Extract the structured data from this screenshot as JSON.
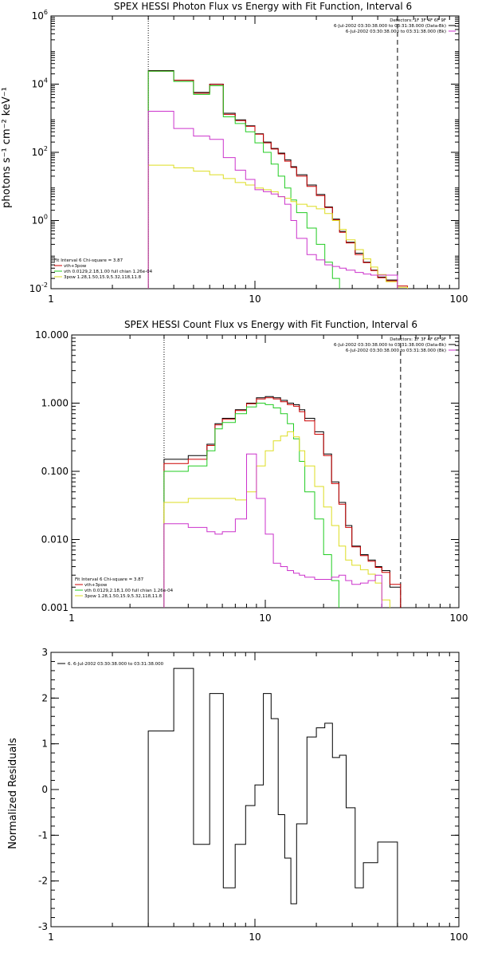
{
  "chart_data": [
    {
      "type": "line",
      "title": "SPEX HESSI Photon Flux vs Energy with Fit Function, Interval 6",
      "xlabel": "",
      "ylabel": "photons s⁻¹ cm⁻² keV⁻¹",
      "x_scale": "log",
      "y_scale": "log",
      "xlim": [
        1,
        100
      ],
      "ylim": [
        0.01,
        1000000
      ],
      "x_tick_labels": [
        "1",
        "10",
        "100"
      ],
      "y_ticks": [
        {
          "value": 1000000,
          "base": "10",
          "exp": "6"
        },
        {
          "value": 10000,
          "base": "10",
          "exp": "4"
        },
        {
          "value": 100,
          "base": "10",
          "exp": "2"
        },
        {
          "value": 1,
          "base": "10",
          "exp": "0"
        },
        {
          "value": 0.01,
          "base": "10",
          "exp": "-2"
        }
      ],
      "markers": [
        {
          "x": 3.0,
          "style": "dotted",
          "color": "#000000"
        },
        {
          "x": 50.0,
          "style": "dashed",
          "color": "#000000"
        }
      ],
      "legend_top": [
        {
          "text": "Detectors: 1F 3F 4F 6F 9F",
          "color": ""
        },
        {
          "text": "6-Jul-2002 03:30:38.000 to 03:31:38.000 (Data-Bk)",
          "color": "#000000"
        },
        {
          "text": "6-Jul-2002 03:30:38.000 to 03:31:38.000 (Bk)",
          "color": "#cc33cc"
        }
      ],
      "legend_bottom": [
        {
          "text": "Fit Interval  6    Chi-square = 3.87",
          "color": ""
        },
        {
          "text": "vth+3pow",
          "color": "#cc0000"
        },
        {
          "text": "vth  0.0129,2.18,1.00  full chian 1.26e-04",
          "color": "#22cc22"
        },
        {
          "text": "3pow  1.28,1.50,15.9,5.32,118,11.8",
          "color": "#dddd22"
        }
      ],
      "edges": [
        3.0,
        3.5,
        4.0,
        5.0,
        6.0,
        7.0,
        8.0,
        9.0,
        10.0,
        11.0,
        12.0,
        13.0,
        14.0,
        15.0,
        16.0,
        18.0,
        20.0,
        22.0,
        24.0,
        26.0,
        28.0,
        31.0,
        34.0,
        37.0,
        40.0,
        44.0,
        50.0,
        56.0
      ],
      "series": [
        {
          "name": "",
          "color": "#000000",
          "values": [
            25000,
            25000,
            13000,
            5700,
            10000,
            1400,
            900,
            600,
            350,
            200,
            130,
            95,
            60,
            38,
            22,
            11,
            5.8,
            2.5,
            1.1,
            0.48,
            0.23,
            0.11,
            0.06,
            0.035,
            0.022,
            0.018,
            0.01
          ]
        },
        {
          "name": "vth+3pow",
          "color": "#cc0000",
          "values": [
            24000,
            24000,
            13000,
            5400,
            9800,
            1300,
            850,
            580,
            340,
            190,
            125,
            90,
            55,
            36,
            20,
            10,
            5.4,
            2.4,
            1.05,
            0.45,
            0.22,
            0.1,
            0.058,
            0.034,
            0.021,
            0.017,
            0.012
          ]
        },
        {
          "name": "vth",
          "color": "#22cc22",
          "values": [
            24000,
            24000,
            12000,
            5000,
            9000,
            1100,
            700,
            400,
            190,
            100,
            45,
            20,
            9,
            4,
            1.7,
            0.6,
            0.2,
            0.06,
            0.02
          ]
        },
        {
          "name": "3pow",
          "color": "#dddd22",
          "values": [
            42,
            42,
            35,
            28,
            22,
            17,
            13,
            11,
            9,
            8,
            7,
            5,
            4.5,
            3.6,
            3.0,
            2.6,
            2.2,
            1.6,
            1.0,
            0.55,
            0.27,
            0.14,
            0.075,
            0.043,
            0.026,
            0.016,
            0.011
          ]
        },
        {
          "name": "",
          "color": "#cc33cc",
          "values": [
            1600,
            1600,
            500,
            300,
            240,
            70,
            30,
            16,
            8,
            7,
            6,
            5,
            3,
            1,
            0.3,
            0.1,
            0.07,
            0.05,
            0.045,
            0.04,
            0.035,
            0.03,
            0.027,
            0.025,
            0.025,
            0.025
          ]
        }
      ]
    },
    {
      "type": "line",
      "title": "SPEX HESSI Count Flux vs Energy with Fit Function, Interval 6",
      "xlabel": "",
      "ylabel": "",
      "x_scale": "log",
      "y_scale": "log",
      "xlim": [
        1,
        100
      ],
      "ylim": [
        0.001,
        10
      ],
      "x_tick_labels": [
        "1",
        "10",
        "100"
      ],
      "y_ticks": [
        {
          "value": 10,
          "label": "10.000"
        },
        {
          "value": 1,
          "label": "1.000"
        },
        {
          "value": 0.1,
          "label": "0.100"
        },
        {
          "value": 0.01,
          "label": "0.010"
        },
        {
          "value": 0.001,
          "label": "0.001"
        }
      ],
      "markers": [
        {
          "x": 3.0,
          "style": "dotted",
          "color": "#000000"
        },
        {
          "x": 50.0,
          "style": "dashed",
          "color": "#000000"
        }
      ],
      "legend_top": [
        {
          "text": "Detectors: 1F 3F 4F 6F 9F",
          "color": ""
        },
        {
          "text": "6-Jul-2002 03:30:38.000 to 03:31:38.000 (Data-Bk)",
          "color": "#000000"
        },
        {
          "text": "6-Jul-2002 03:30:38.000 to 03:31:38.000 (Bk)",
          "color": "#cc33cc"
        }
      ],
      "legend_bottom": [
        {
          "text": "Fit Interval  6    Chi-square = 3.87",
          "color": ""
        },
        {
          "text": "vth+3pow",
          "color": "#cc0000"
        },
        {
          "text": "vth  0.0129,2.18,1.00  full chian 1.26e-04",
          "color": "#22cc22"
        },
        {
          "text": "3pow  1.28,1.50,15.9,5.32,118,11.8",
          "color": "#dddd22"
        }
      ],
      "edges": [
        3.0,
        4.0,
        5.0,
        5.5,
        6.0,
        7.0,
        8.0,
        9.0,
        10.0,
        11.0,
        12.0,
        13.0,
        14.0,
        15.0,
        16.0,
        18.0,
        20.0,
        22.0,
        24.0,
        26.0,
        28.0,
        31.0,
        34.0,
        37.0,
        40.0,
        44.0,
        50.0,
        56.0,
        62.0
      ],
      "series": [
        {
          "name": "",
          "color": "#000000",
          "values": [
            0.15,
            0.17,
            0.25,
            0.5,
            0.6,
            0.8,
            1.0,
            1.2,
            1.25,
            1.2,
            1.1,
            1.0,
            0.95,
            0.8,
            0.6,
            0.38,
            0.18,
            0.07,
            0.035,
            0.016,
            0.008,
            0.006,
            0.005,
            0.004,
            0.0035,
            0.002
          ]
        },
        {
          "name": "vth+3pow",
          "color": "#cc0000",
          "values": [
            0.13,
            0.15,
            0.24,
            0.48,
            0.58,
            0.78,
            0.98,
            1.15,
            1.2,
            1.15,
            1.05,
            0.95,
            0.9,
            0.75,
            0.55,
            0.35,
            0.17,
            0.066,
            0.033,
            0.015,
            0.0078,
            0.0058,
            0.0048,
            0.0039,
            0.0033,
            0.0022
          ]
        },
        {
          "name": "vth",
          "color": "#22cc22",
          "values": [
            0.1,
            0.12,
            0.2,
            0.42,
            0.52,
            0.7,
            0.88,
            1.0,
            0.95,
            0.85,
            0.7,
            0.5,
            0.3,
            0.14,
            0.05,
            0.02,
            0.006,
            0.0025,
            0.001
          ]
        },
        {
          "name": "3pow",
          "color": "#dddd22",
          "values": [
            0.035,
            0.04,
            0.04,
            0.04,
            0.04,
            0.038,
            0.05,
            0.12,
            0.2,
            0.28,
            0.33,
            0.38,
            0.32,
            0.2,
            0.12,
            0.06,
            0.03,
            0.016,
            0.008,
            0.005,
            0.0042,
            0.0036,
            0.0031,
            0.0023,
            0.0013
          ]
        },
        {
          "name": "",
          "color": "#cc33cc",
          "values": [
            0.017,
            0.015,
            0.013,
            0.012,
            0.013,
            0.02,
            0.18,
            0.04,
            0.012,
            0.0045,
            0.004,
            0.0035,
            0.0032,
            0.003,
            0.0028,
            0.0026,
            0.0026,
            0.0028,
            0.003,
            0.0025,
            0.0022,
            0.0023,
            0.0025,
            0.003
          ]
        }
      ]
    },
    {
      "type": "line",
      "title": "",
      "xlabel": "",
      "ylabel": "Normalized Residuals",
      "x_scale": "log",
      "y_scale": "linear",
      "xlim": [
        1,
        100
      ],
      "ylim": [
        -3,
        3
      ],
      "x_tick_labels": [
        "1",
        "10",
        "100"
      ],
      "y_ticks": [
        {
          "value": 3,
          "label": "3"
        },
        {
          "value": 2,
          "label": "2"
        },
        {
          "value": 1,
          "label": "1"
        },
        {
          "value": 0,
          "label": "0"
        },
        {
          "value": -1,
          "label": "-1"
        },
        {
          "value": -2,
          "label": "-2"
        },
        {
          "value": -3,
          "label": "-3"
        }
      ],
      "legend_top": [
        {
          "text": "6.  6-Jul-2002 03:30:38.000 to 03:31:38.000",
          "color": "#000000"
        }
      ],
      "edges": [
        3.0,
        4.0,
        5.0,
        6.0,
        7.0,
        8.0,
        9.0,
        10.0,
        11.0,
        12.0,
        13.0,
        14.0,
        15.0,
        16.0,
        18.0,
        20.0,
        22.0,
        24.0,
        26.0,
        28.0,
        31.0,
        34.0,
        37.0,
        40.0,
        44.0,
        50.0
      ],
      "series": [
        {
          "name": "",
          "color": "#000000",
          "values": [
            1.28,
            2.65,
            -1.2,
            2.1,
            -2.15,
            -1.2,
            -0.35,
            0.1,
            2.1,
            1.55,
            -0.55,
            -1.5,
            -2.5,
            -0.75,
            1.15,
            1.35,
            1.45,
            0.7,
            0.75,
            -0.4,
            -2.15,
            -1.6,
            -1.6,
            -1.15,
            -1.15
          ]
        }
      ]
    }
  ]
}
